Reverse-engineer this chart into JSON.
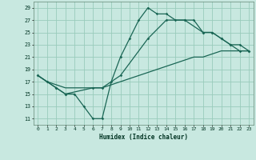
{
  "title": "",
  "xlabel": "Humidex (Indice chaleur)",
  "xlim": [
    -0.5,
    23.5
  ],
  "ylim": [
    10,
    30
  ],
  "xticks": [
    0,
    1,
    2,
    3,
    4,
    5,
    6,
    7,
    8,
    9,
    10,
    11,
    12,
    13,
    14,
    15,
    16,
    17,
    18,
    19,
    20,
    21,
    22,
    23
  ],
  "yticks": [
    11,
    13,
    15,
    17,
    19,
    21,
    23,
    25,
    27,
    29
  ],
  "bg_color": "#c8e8e0",
  "grid_color": "#99ccbb",
  "line_color": "#1a6655",
  "line1_x": [
    0,
    1,
    2,
    3,
    4,
    5,
    6,
    7,
    8,
    9,
    10,
    11,
    12,
    13,
    14,
    15,
    16,
    17,
    18,
    19,
    20,
    21,
    22,
    23
  ],
  "line1_y": [
    18,
    17,
    16,
    15,
    15,
    13,
    11,
    11,
    17,
    21,
    24,
    27,
    29,
    28,
    28,
    27,
    27,
    27,
    25,
    25,
    24,
    23,
    22,
    22
  ],
  "line2_x": [
    0,
    1,
    2,
    3,
    4,
    5,
    6,
    7,
    8,
    9,
    10,
    11,
    12,
    13,
    14,
    15,
    16,
    17,
    18,
    19,
    20,
    21,
    22,
    23
  ],
  "line2_y": [
    18,
    17,
    16.5,
    16,
    16,
    16,
    16,
    16,
    16.5,
    17,
    17.5,
    18,
    18.5,
    19,
    19.5,
    20,
    20.5,
    21,
    21,
    21.5,
    22,
    22,
    22,
    22
  ],
  "line3_x": [
    0,
    1,
    2,
    3,
    6,
    7,
    9,
    12,
    14,
    16,
    18,
    19,
    20,
    21,
    22,
    23
  ],
  "line3_y": [
    18,
    17,
    16,
    15,
    16,
    16,
    18,
    24,
    27,
    27,
    25,
    25,
    24,
    23,
    23,
    22
  ]
}
